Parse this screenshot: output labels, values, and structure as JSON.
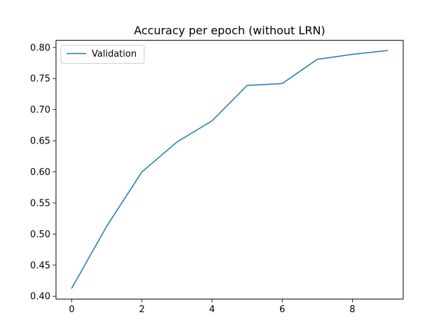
{
  "chart_data": {
    "type": "line",
    "title": "Accuracy per epoch (without LRN)",
    "xlabel": "",
    "ylabel": "",
    "xlim": [
      -0.45,
      9.45
    ],
    "ylim": [
      0.3955,
      0.8115
    ],
    "xticks": [
      0,
      2,
      4,
      6,
      8
    ],
    "xtick_labels": [
      "0",
      "2",
      "4",
      "6",
      "8"
    ],
    "yticks": [
      0.4,
      0.45,
      0.5,
      0.55,
      0.6,
      0.65,
      0.7,
      0.75,
      0.8
    ],
    "ytick_labels": [
      "0.40",
      "0.45",
      "0.50",
      "0.55",
      "0.60",
      "0.65",
      "0.70",
      "0.75",
      "0.80"
    ],
    "grid": false,
    "legend_position": "top-left",
    "series": [
      {
        "name": "Validation",
        "color": "#1f77b4",
        "x": [
          0,
          1,
          2,
          3,
          4,
          5,
          6,
          7,
          8,
          9
        ],
        "values": [
          0.413,
          0.513,
          0.6,
          0.648,
          0.682,
          0.739,
          0.742,
          0.781,
          0.789,
          0.795
        ]
      }
    ]
  }
}
